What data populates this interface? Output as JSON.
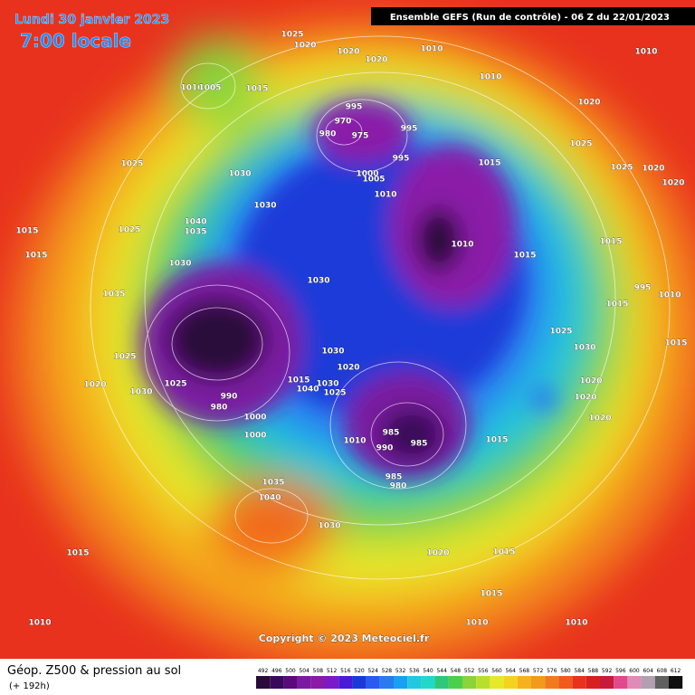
{
  "header": {
    "title": "Lundi 30 janvier 2023",
    "time": "7:00 locale",
    "run": "Ensemble GEFS (Run de contrôle)  -  06 Z du 22/01/2023"
  },
  "map": {
    "isobar_labels": [
      1025,
      1020,
      1020,
      1020,
      1010,
      1010,
      1010,
      1020,
      1010,
      1005,
      1015,
      995,
      970,
      980,
      975,
      995,
      995,
      1025,
      1015,
      1025,
      1030,
      1000,
      1005,
      1010,
      1030,
      1025,
      1020,
      1020,
      1040,
      1035,
      1025,
      1015,
      1015,
      1010,
      1015,
      1015,
      1030,
      1030,
      995,
      1010,
      1015,
      1035,
      1025,
      1030,
      1030,
      1025,
      1020,
      1015,
      1020,
      1030,
      1025,
      1015,
      1040,
      1030,
      1025,
      1020,
      1020,
      1020,
      990,
      980,
      1000,
      1000,
      985,
      985,
      990,
      1010,
      1015,
      985,
      980,
      1035,
      1040,
      1030,
      1015,
      1020,
      1015,
      1015,
      1010,
      1010,
      1010
    ]
  },
  "copyright": "Copyright © 2023 Meteociel.fr",
  "footer": {
    "title": "Géop. Z500 & pression au sol",
    "lead": "(+ 192h)",
    "scale": [
      492,
      496,
      500,
      504,
      508,
      512,
      516,
      520,
      524,
      528,
      532,
      536,
      540,
      544,
      548,
      552,
      556,
      560,
      564,
      568,
      572,
      576,
      580,
      584,
      588,
      592,
      596,
      600,
      604,
      608,
      612
    ]
  }
}
